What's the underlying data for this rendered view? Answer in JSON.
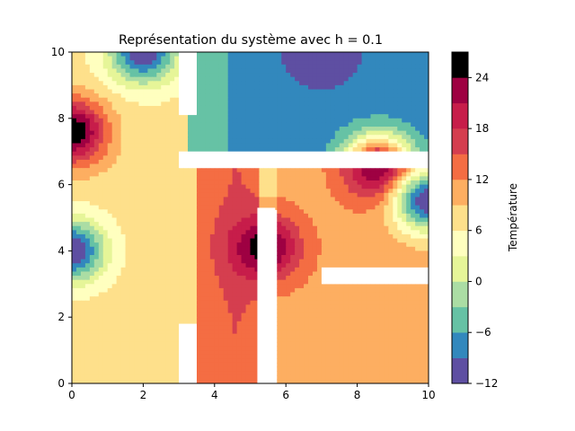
{
  "chart_data": {
    "type": "heatmap",
    "subtype": "filled-contour",
    "title": "Représentation du système avec h = 0.1",
    "xlabel": "",
    "ylabel": "",
    "xlim": [
      0,
      10
    ],
    "ylim": [
      0,
      10
    ],
    "xticks": [
      0,
      2,
      4,
      6,
      8,
      10
    ],
    "yticks": [
      0,
      2,
      4,
      6,
      8,
      10
    ],
    "grid": false,
    "colormap": "Spectral_r",
    "colorbar": {
      "label": "Température",
      "range": [
        -12,
        27
      ],
      "ticks": [
        -12,
        -6,
        0,
        6,
        12,
        18,
        24
      ],
      "levels": [
        -12,
        -9,
        -6,
        -3,
        0,
        3,
        6,
        9,
        12,
        15,
        18,
        21,
        24,
        27
      ],
      "colors": [
        "#5e4fa2",
        "#3288bd",
        "#66c2a5",
        "#abdda4",
        "#e6f598",
        "#ffffbf",
        "#fee08b",
        "#fdae61",
        "#f46d43",
        "#d53e4f",
        "#c71d4a",
        "#9e0142"
      ]
    },
    "walls": [
      {
        "x": [
          3.0,
          3.5
        ],
        "y": [
          8.1,
          10.0
        ]
      },
      {
        "x": [
          3.0,
          10.0
        ],
        "y": [
          6.5,
          7.0
        ]
      },
      {
        "x": [
          5.2,
          5.7
        ],
        "y": [
          0.0,
          5.3
        ]
      },
      {
        "x": [
          7.0,
          10.0
        ],
        "y": [
          3.0,
          3.5
        ]
      },
      {
        "x": [
          3.0,
          3.5
        ],
        "y": [
          0.0,
          1.8
        ]
      }
    ],
    "sources": [
      {
        "x": 0.0,
        "y": 7.6,
        "temperature": 27
      },
      {
        "x": 5.4,
        "y": 4.1,
        "temperature": 26
      },
      {
        "x": 8.6,
        "y": 6.5,
        "temperature": 25
      },
      {
        "x": 0.0,
        "y": 4.0,
        "temperature": -12
      },
      {
        "x": 10.0,
        "y": 5.5,
        "temperature": -12
      },
      {
        "x": 2.0,
        "y": 10.0,
        "temperature": -12
      },
      {
        "x": 7.0,
        "y": 10.0,
        "temperature": -12
      }
    ]
  }
}
